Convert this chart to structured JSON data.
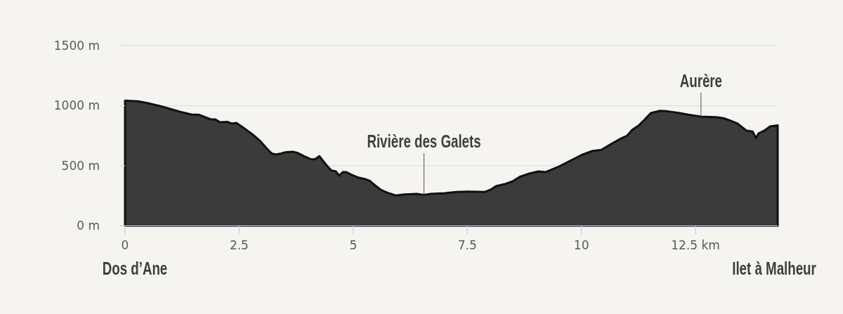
{
  "chart_data": {
    "type": "area",
    "x": [
      0,
      0.29,
      0.49,
      0.75,
      1.0,
      1.26,
      1.47,
      1.62,
      1.88,
      1.98,
      2.08,
      2.24,
      2.34,
      2.44,
      2.59,
      2.8,
      2.95,
      3.11,
      3.21,
      3.31,
      3.42,
      3.52,
      3.67,
      3.77,
      3.93,
      4.08,
      4.16,
      4.26,
      4.39,
      4.52,
      4.62,
      4.69,
      4.77,
      4.85,
      4.95,
      5.11,
      5.26,
      5.36,
      5.47,
      5.6,
      5.75,
      5.93,
      6.13,
      6.39,
      6.55,
      6.7,
      7.01,
      7.26,
      7.52,
      7.88,
      8.03,
      8.13,
      8.34,
      8.49,
      8.65,
      8.85,
      9.06,
      9.21,
      9.47,
      9.72,
      10.03,
      10.24,
      10.44,
      10.65,
      10.85,
      11.0,
      11.11,
      11.26,
      11.39,
      11.52,
      11.72,
      11.88,
      12.13,
      12.34,
      12.62,
      12.95,
      13.11,
      13.26,
      13.42,
      13.62,
      13.75,
      13.83,
      13.88,
      14.03,
      14.13,
      14.3
    ],
    "values": [
      1042,
      1036,
      1022,
      999,
      972,
      944,
      925,
      925,
      886,
      886,
      862,
      866,
      851,
      857,
      818,
      759,
      710,
      642,
      603,
      594,
      603,
      613,
      617,
      609,
      578,
      554,
      554,
      580,
      516,
      461,
      453,
      418,
      447,
      447,
      428,
      402,
      389,
      375,
      340,
      301,
      276,
      253,
      262,
      266,
      258,
      266,
      272,
      282,
      285,
      282,
      305,
      330,
      350,
      370,
      408,
      434,
      453,
      447,
      487,
      535,
      594,
      623,
      633,
      681,
      724,
      750,
      798,
      837,
      886,
      939,
      958,
      954,
      940,
      925,
      909,
      905,
      896,
      876,
      851,
      792,
      785,
      730,
      769,
      798,
      827,
      837
    ],
    "color": "#3b3b3b",
    "xlim": [
      0,
      14.3
    ],
    "ylim": [
      0,
      1500
    ],
    "xticks": [
      0,
      2.5,
      5,
      7.5,
      10,
      {
        "value": 12.5,
        "label": "12.5 km"
      }
    ],
    "yticks": [
      {
        "value": 0,
        "label": "0 m"
      },
      {
        "value": 500,
        "label": "500 m"
      },
      {
        "value": 1000,
        "label": "1000 m"
      },
      {
        "value": 1500,
        "label": "1500 m"
      }
    ],
    "grid": "y",
    "annotations": [
      {
        "text": "Aurère",
        "x": 12.62,
        "y": 909
      },
      {
        "text": "Rivière des Galets",
        "x": 6.55,
        "y": 258
      },
      "Dos d’Ane",
      "Ilet à Malheur"
    ]
  }
}
